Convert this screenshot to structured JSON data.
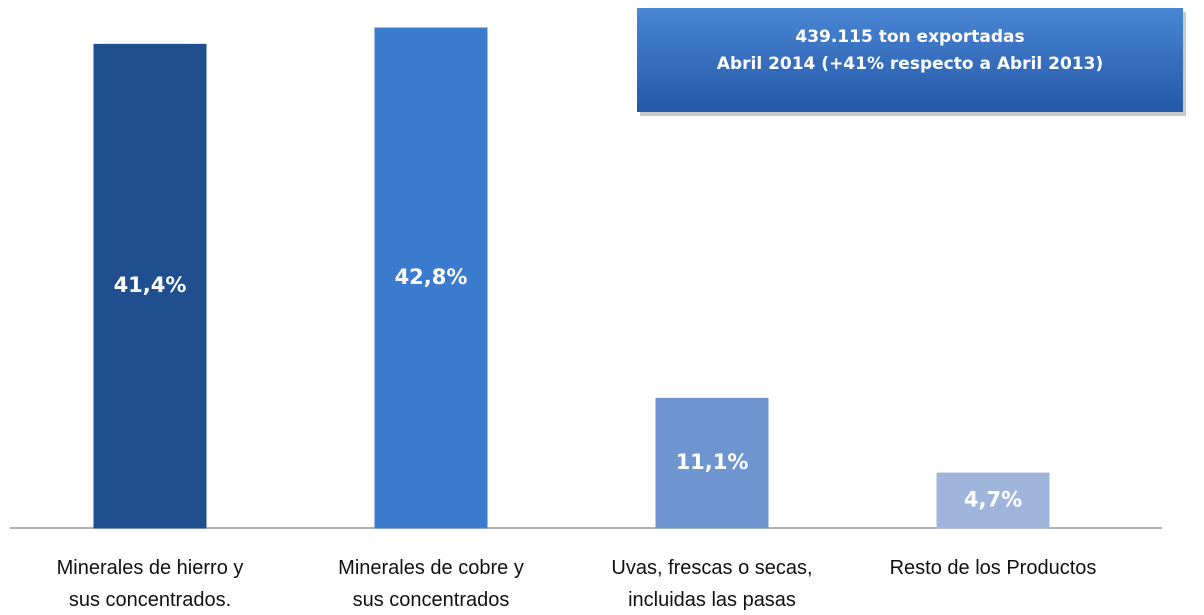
{
  "chart_data": {
    "type": "bar",
    "annotation": [
      "439.115 ton exportadas",
      "Abril 2014  (+41% respecto a Abril 2013)"
    ],
    "categories": [
      "Minerales de hierro y\nsus concentrados.",
      "Minerales de cobre y\nsus concentrados",
      "Uvas, frescas o secas,\nincluidas las pasas",
      "Resto de los Productos"
    ],
    "values": [
      41.4,
      42.8,
      11.1,
      4.7
    ],
    "value_labels": [
      "41,4%",
      "42,8%",
      "11,1%",
      "4,7%"
    ],
    "colors": [
      "#1f4f8f",
      "#3b7bce",
      "#6f95d0",
      "#9fb5dc"
    ]
  }
}
